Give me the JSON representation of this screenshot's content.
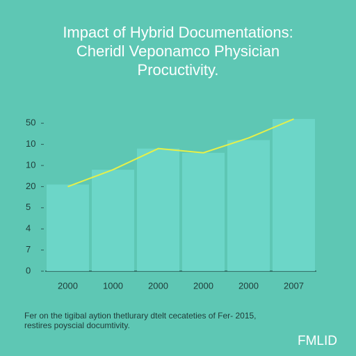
{
  "chart_data": {
    "type": "bar",
    "title": [
      "Impact of Hybrid Documentations:",
      "Cheridl Veponamco Physician",
      "Procuctivity."
    ],
    "categories": [
      "2000",
      "1000",
      "2000",
      "2000",
      "2000",
      "2007"
    ],
    "series": [
      {
        "type": "bar",
        "color": "#6fd8cb",
        "values": [
          4.1,
          4.8,
          5.8,
          5.6,
          6.2,
          7.2
        ]
      },
      {
        "type": "line",
        "color": "#e6f04a",
        "values": [
          4.0,
          4.8,
          5.8,
          5.6,
          6.3,
          7.2
        ]
      }
    ],
    "ylim": [
      0,
      7.5
    ],
    "yticks": [
      0,
      {
        "value": 1,
        "label": "7"
      },
      {
        "value": 2,
        "label": "4"
      },
      {
        "value": 3,
        "label": "5"
      },
      {
        "value": 4,
        "label": "20"
      },
      {
        "value": 5,
        "label": "10"
      },
      {
        "value": 6,
        "label": "10"
      },
      {
        "value": 7,
        "label": "50"
      }
    ],
    "footnote": [
      "Fer on the tigibal aytion thetlurary dtelt cecateties of Fer- 2015,",
      "restires poyscial documtivity."
    ],
    "brand": "FMLID"
  }
}
